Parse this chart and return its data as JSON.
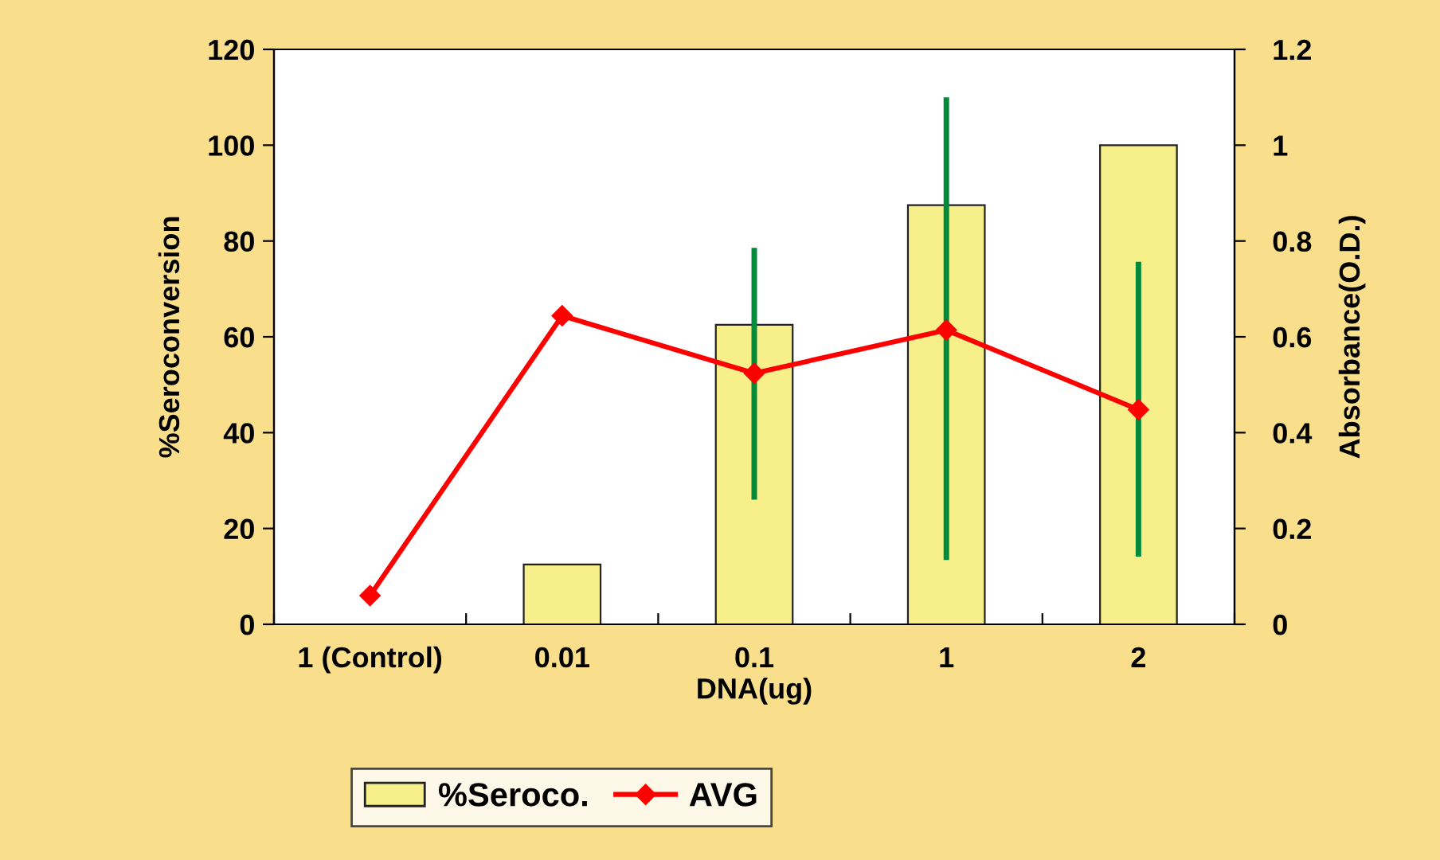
{
  "chart_data": {
    "type": "bar",
    "xlabel": "DNA(ug)",
    "ylabel": "%Seroconversion",
    "y2label": "Absorbance(O.D.)",
    "categories": [
      "1 (Control)",
      "0.01",
      "0.1",
      "1",
      "2"
    ],
    "series": [
      {
        "name": "%Seroco.",
        "color": "#f7f08a",
        "values": [
          null,
          12.5,
          62.5,
          87.5,
          100
        ]
      },
      {
        "name": "AVG",
        "type": "line",
        "axis": "y2",
        "color": "#ff0000",
        "marker": "diamond",
        "values": [
          0.06,
          0.644,
          0.524,
          0.614,
          0.448
        ],
        "errors": [
          null,
          null,
          [
            0.266,
            0.78
          ],
          [
            0.14,
            1.094
          ],
          [
            0.147,
            0.751
          ]
        ]
      }
    ],
    "ylim": [
      0,
      120
    ],
    "yticks": [
      0,
      20,
      40,
      60,
      80,
      100,
      120
    ],
    "y2lim": [
      0,
      1.2
    ],
    "y2ticks": [
      0,
      0.2,
      0.4,
      0.6,
      0.8,
      1,
      1.2
    ],
    "grid": false,
    "legend": "bottom"
  }
}
